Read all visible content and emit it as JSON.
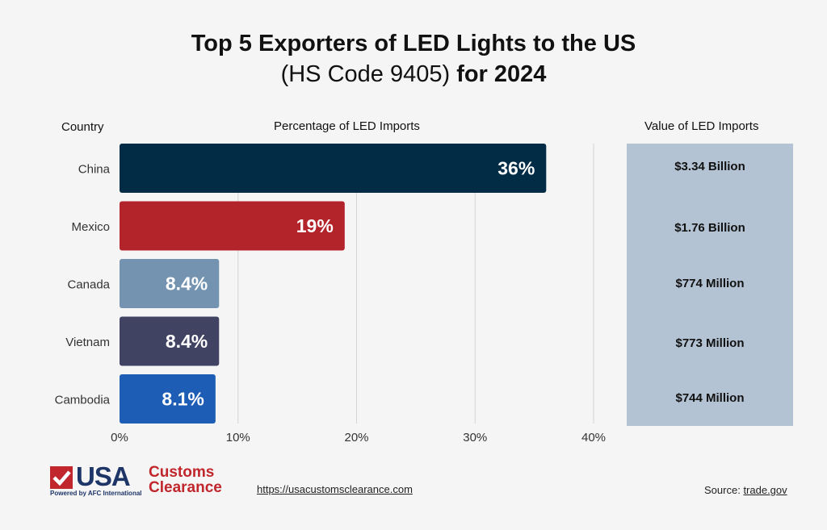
{
  "title": {
    "line1": "Top 5 Exporters of LED Lights to the US",
    "line2_regular": "(HS Code 9405)",
    "line2_bold": "for 2024"
  },
  "headers": {
    "country": "Country",
    "percentage": "Percentage of LED Imports",
    "value": "Value of LED Imports"
  },
  "chart_data": {
    "type": "bar",
    "orientation": "horizontal",
    "categories": [
      "China",
      "Mexico",
      "Canada",
      "Vietnam",
      "Cambodia"
    ],
    "values": [
      36,
      19,
      8.4,
      8.4,
      8.1
    ],
    "data_labels": [
      "36%",
      "19%",
      "8.4%",
      "8.4%",
      "8.1%"
    ],
    "bar_colors": [
      "#022b45",
      "#b3242a",
      "#7493b0",
      "#414362",
      "#1d5db5"
    ],
    "xlim": [
      0,
      40
    ],
    "x_ticks": [
      0,
      10,
      20,
      30,
      40
    ],
    "x_tick_labels": [
      "0%",
      "10%",
      "20%",
      "30%",
      "40%"
    ],
    "grid": "vertical",
    "xlabel": "",
    "ylabel": ""
  },
  "import_values": [
    "$3.34 Billion",
    "$1.76 Billion",
    "$774 Million",
    "$773 Million",
    "$744 Million"
  ],
  "footer": {
    "logo_usa": "USA",
    "logo_customs": "Customs",
    "logo_clearance": "Clearance",
    "logo_powered": "Powered by AFC International",
    "url": "https://usacustomsclearance.com",
    "source_label": "Source:",
    "source_link": "trade.gov"
  },
  "colors": {
    "background": "#f5f5f5",
    "value_panel": "#b3c3d3",
    "gridline": "#d4d4d4",
    "brand_blue": "#1d3567",
    "brand_red": "#c0262c"
  }
}
